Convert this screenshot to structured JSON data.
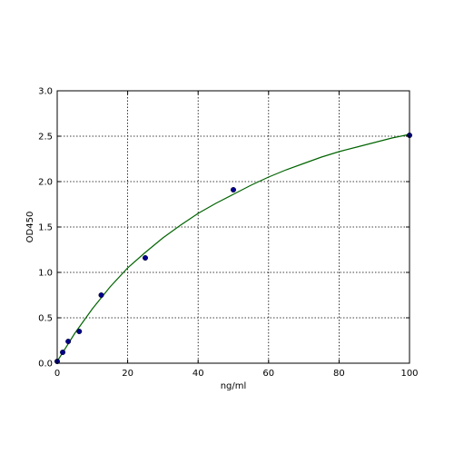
{
  "chart_data": {
    "type": "scatter",
    "title": "",
    "xlabel": "ng/ml",
    "ylabel": "OD450",
    "xlim": [
      0,
      100
    ],
    "ylim": [
      0,
      3.0
    ],
    "x_ticks": [
      0,
      20,
      40,
      60,
      80,
      100
    ],
    "y_ticks": [
      0,
      0.5,
      1.0,
      1.5,
      2.0,
      2.5,
      3.0
    ],
    "x_tick_labels": [
      "0",
      "20",
      "40",
      "60",
      "80",
      "100"
    ],
    "y_tick_labels": [
      "0.0",
      "0.5",
      "1.0",
      "1.5",
      "2.0",
      "2.5",
      "3.0"
    ],
    "grid": true,
    "series": [
      {
        "kind": "points",
        "color": "#00008b",
        "x": [
          0,
          1.56,
          3.13,
          6.25,
          12.5,
          25,
          50,
          100
        ],
        "y": [
          0.02,
          0.12,
          0.24,
          0.35,
          0.75,
          1.16,
          1.91,
          2.51
        ]
      },
      {
        "kind": "fitted-curve",
        "color": "#006400",
        "x": [
          0,
          5,
          10,
          15,
          20,
          25,
          30,
          35,
          40,
          45,
          50,
          55,
          60,
          65,
          70,
          75,
          80,
          85,
          90,
          95,
          100
        ],
        "y": [
          0.02,
          0.33,
          0.6,
          0.84,
          1.05,
          1.22,
          1.38,
          1.52,
          1.65,
          1.76,
          1.86,
          1.96,
          2.05,
          2.13,
          2.2,
          2.27,
          2.33,
          2.38,
          2.43,
          2.48,
          2.52
        ]
      }
    ]
  }
}
